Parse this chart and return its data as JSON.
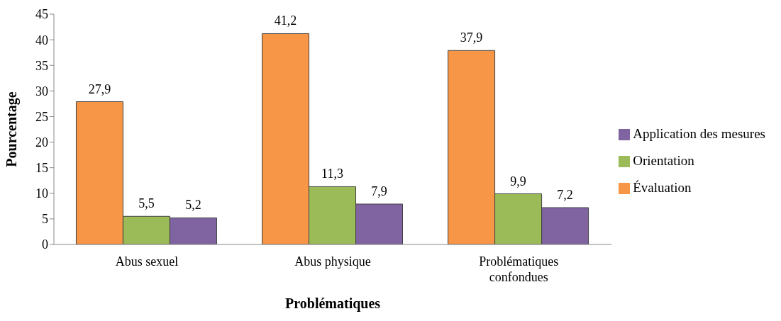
{
  "chart_data": {
    "type": "bar",
    "xlabel": "Problématiques",
    "ylabel": "Pourcentage",
    "categories": [
      "Abus sexuel",
      "Abus physique",
      "Problématiques confondues"
    ],
    "series": [
      {
        "name": "Évaluation",
        "color": "#f79646",
        "values": [
          27.9,
          41.2,
          37.9
        ],
        "value_labels": [
          "27,9",
          "41,2",
          "37,9"
        ]
      },
      {
        "name": "Orientation",
        "color": "#9bbb59",
        "values": [
          5.5,
          11.3,
          9.9
        ],
        "value_labels": [
          "5,5",
          "11,3",
          "9,9"
        ]
      },
      {
        "name": "Application des mesures",
        "color": "#8064a2",
        "values": [
          5.2,
          7.9,
          7.2
        ],
        "value_labels": [
          "5,2",
          "7,9",
          "7,2"
        ]
      }
    ],
    "ylim": [
      0,
      45
    ],
    "yticks": [
      0,
      5,
      10,
      15,
      20,
      25,
      30,
      35,
      40,
      45
    ],
    "grid": false,
    "legend": "right"
  }
}
